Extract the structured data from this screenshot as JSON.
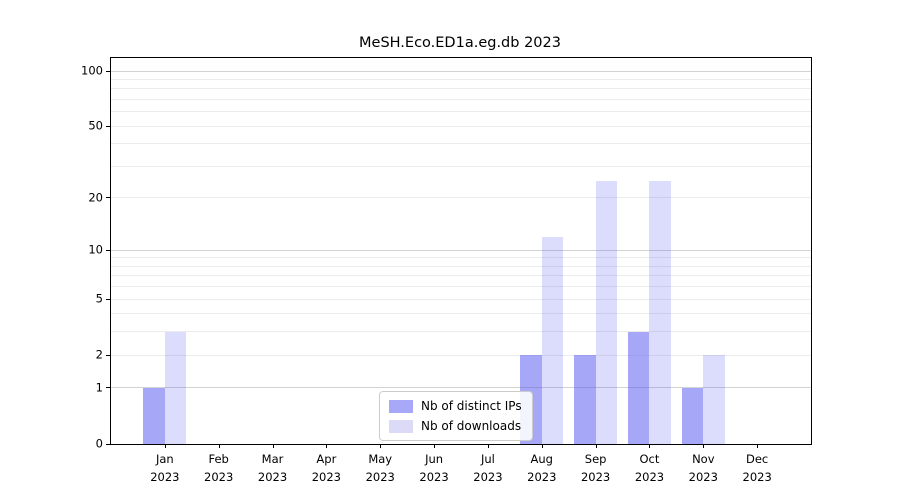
{
  "chart_data": {
    "type": "bar",
    "title": "MeSH.Eco.ED1a.eg.db 2023",
    "categories": [
      "Jan",
      "Feb",
      "Mar",
      "Apr",
      "May",
      "Jun",
      "Jul",
      "Aug",
      "Sep",
      "Oct",
      "Nov",
      "Dec"
    ],
    "year_label": "2023",
    "series": [
      {
        "name": "Nb of distinct IPs",
        "color": "rgba(80,80,240,0.50)",
        "legend_color": "#a8a8f8",
        "values": [
          1,
          0,
          0,
          0,
          0,
          0,
          0,
          2,
          2,
          3,
          1,
          0
        ]
      },
      {
        "name": "Nb of downloads",
        "color": "rgba(80,80,240,0.20)",
        "legend_color": "#dbdbf8",
        "values": [
          3,
          0,
          0,
          0,
          0,
          0,
          0,
          12,
          25,
          25,
          2,
          0
        ]
      }
    ],
    "yscale": "log1p",
    "ylabel": "",
    "xlabel": "",
    "ytick_values": [
      0,
      1,
      2,
      5,
      10,
      20,
      50,
      100
    ],
    "major_grid_values": [
      1,
      10,
      100
    ],
    "minor_grid_values": [
      2,
      3,
      4,
      5,
      6,
      7,
      8,
      9,
      20,
      30,
      40,
      50,
      60,
      70,
      80,
      90
    ],
    "ylim_top_value": 118,
    "legend_position": "bottom-center",
    "grid": "horizontal"
  }
}
